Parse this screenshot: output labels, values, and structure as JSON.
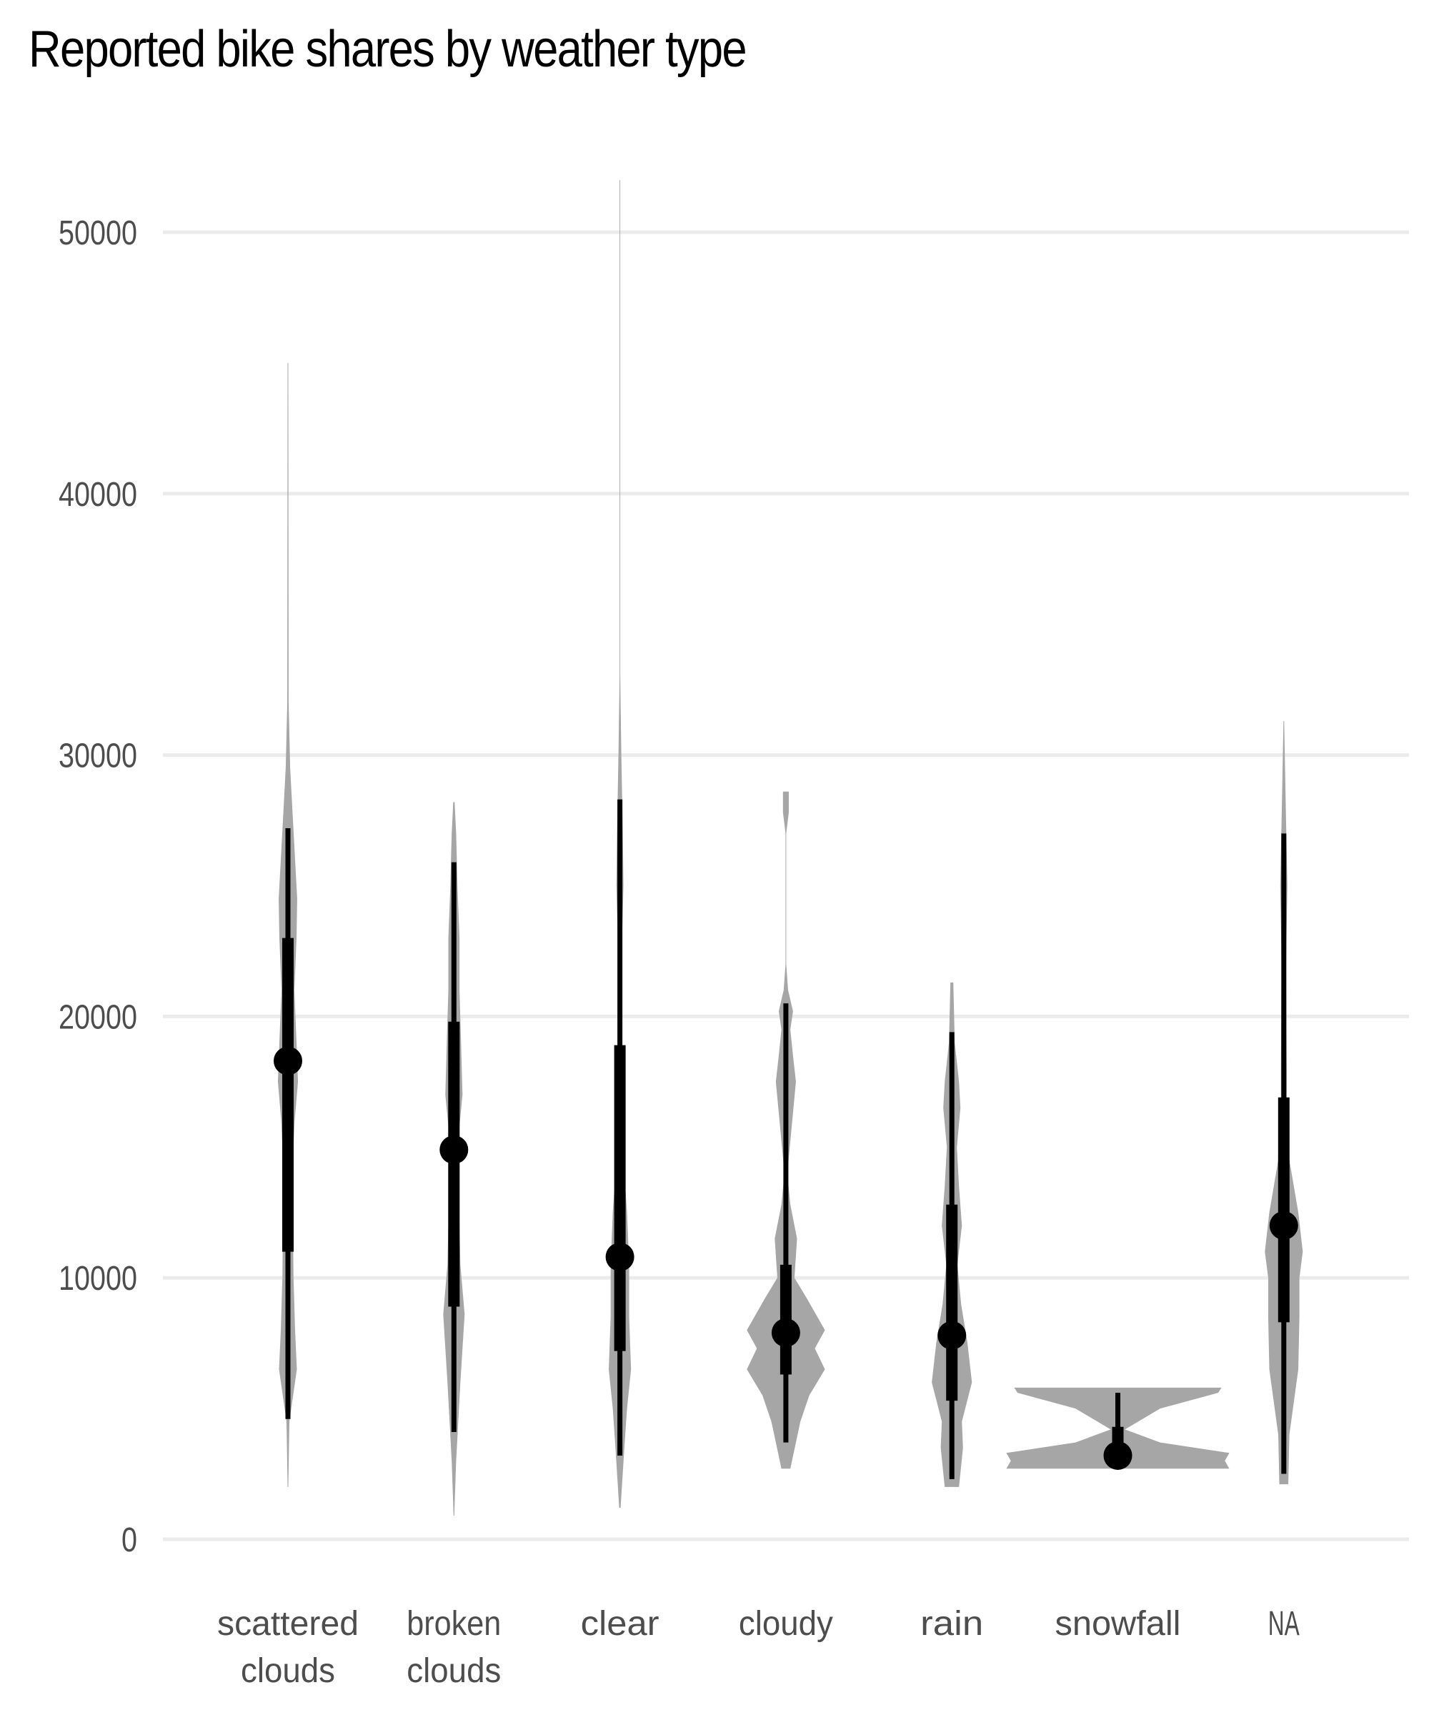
{
  "chart_data": {
    "type": "violin",
    "title": "Reported bike shares by weather type",
    "xlabel": "",
    "ylabel": "",
    "ylim": [
      0,
      52000
    ],
    "yticks": [
      0,
      10000,
      20000,
      30000,
      40000,
      50000
    ],
    "grid": "horizontal",
    "colors": {
      "violin": "#a6a6a6",
      "interval": "#000000",
      "grid": "#ebebeb",
      "tick": "#4d4d4d"
    },
    "categories": [
      {
        "label": [
          "scattered",
          "clouds"
        ],
        "median": 18300,
        "q": [
          11000,
          23000
        ],
        "whisker": [
          4600,
          27200
        ],
        "density": [
          [
            2000,
            0.003
          ],
          [
            4500,
            0.013
          ],
          [
            6500,
            0.08
          ],
          [
            8000,
            0.064
          ],
          [
            10000,
            0.05
          ],
          [
            12000,
            0.045
          ],
          [
            14000,
            0.04
          ],
          [
            16000,
            0.06
          ],
          [
            17500,
            0.09
          ],
          [
            19000,
            0.077
          ],
          [
            21000,
            0.058
          ],
          [
            23000,
            0.077
          ],
          [
            24500,
            0.083
          ],
          [
            26000,
            0.064
          ],
          [
            27500,
            0.045
          ],
          [
            29500,
            0.02
          ],
          [
            32000,
            0.006
          ],
          [
            45000,
            0.003
          ]
        ]
      },
      {
        "label": [
          "broken",
          "clouds"
        ],
        "median": 14900,
        "q": [
          8900,
          19800
        ],
        "whisker": [
          4100,
          25900
        ],
        "density": [
          [
            900,
            0.003
          ],
          [
            3000,
            0.02
          ],
          [
            6000,
            0.058
          ],
          [
            8600,
            0.096
          ],
          [
            10500,
            0.058
          ],
          [
            13000,
            0.045
          ],
          [
            15000,
            0.032
          ],
          [
            17000,
            0.077
          ],
          [
            19000,
            0.064
          ],
          [
            21000,
            0.05
          ],
          [
            23000,
            0.05
          ],
          [
            25000,
            0.032
          ],
          [
            27000,
            0.02
          ],
          [
            28200,
            0.006
          ]
        ]
      },
      {
        "label": [
          "clear"
        ],
        "median": 10800,
        "q": [
          7200,
          18900
        ],
        "whisker": [
          3200,
          28300
        ],
        "density": [
          [
            1200,
            0.006
          ],
          [
            3500,
            0.04
          ],
          [
            5000,
            0.064
          ],
          [
            6500,
            0.1
          ],
          [
            8500,
            0.083
          ],
          [
            10500,
            0.083
          ],
          [
            12500,
            0.064
          ],
          [
            14000,
            0.04
          ],
          [
            16000,
            0.02
          ],
          [
            18000,
            0.013
          ],
          [
            22000,
            0.013
          ],
          [
            25000,
            0.032
          ],
          [
            27000,
            0.026
          ],
          [
            30000,
            0.013
          ],
          [
            33000,
            0.003
          ],
          [
            52000,
            0.003
          ]
        ]
      },
      {
        "label": [
          "cloudy"
        ],
        "median": 7900,
        "q": [
          6300,
          10500
        ],
        "whisker": [
          3700,
          20500
        ],
        "density": [
          [
            2700,
            0.04
          ],
          [
            3700,
            0.09
          ],
          [
            4500,
            0.13
          ],
          [
            5500,
            0.21
          ],
          [
            6500,
            0.35
          ],
          [
            7300,
            0.26
          ],
          [
            8000,
            0.35
          ],
          [
            9200,
            0.19
          ],
          [
            10000,
            0.077
          ],
          [
            11500,
            0.1
          ],
          [
            12800,
            0.04
          ],
          [
            14000,
            0.013
          ],
          [
            17500,
            0.09
          ],
          [
            18500,
            0.064
          ],
          [
            19500,
            0.04
          ],
          [
            20200,
            0.064
          ],
          [
            21000,
            0.02
          ],
          [
            22000,
            0.003
          ],
          [
            27000,
            0.003
          ],
          [
            27800,
            0.026
          ],
          [
            28600,
            0.026
          ]
        ]
      },
      {
        "label": [
          "rain"
        ],
        "median": 7800,
        "q": [
          5300,
          12800
        ],
        "whisker": [
          2300,
          19400
        ],
        "density": [
          [
            2000,
            0.064
          ],
          [
            3500,
            0.1
          ],
          [
            4500,
            0.09
          ],
          [
            6000,
            0.18
          ],
          [
            7500,
            0.14
          ],
          [
            9000,
            0.083
          ],
          [
            10500,
            0.05
          ],
          [
            12000,
            0.09
          ],
          [
            13500,
            0.064
          ],
          [
            15000,
            0.045
          ],
          [
            16500,
            0.077
          ],
          [
            17500,
            0.064
          ],
          [
            19000,
            0.026
          ],
          [
            21300,
            0.013
          ]
        ]
      },
      {
        "label": [
          "snowfall"
        ],
        "median": 3200,
        "q": [
          2900,
          4300
        ],
        "whisker": [
          2800,
          5600
        ],
        "density": [
          [
            2700,
            1.0
          ],
          [
            3000,
            0.96
          ],
          [
            3300,
            1.0
          ],
          [
            3700,
            0.38
          ],
          [
            4200,
            0.064
          ],
          [
            5000,
            0.38
          ],
          [
            5600,
            0.9
          ],
          [
            5800,
            0.93
          ]
        ]
      },
      {
        "label": [
          "NA"
        ],
        "median": 12000,
        "q": [
          8300,
          16900
        ],
        "whisker": [
          2500,
          27000
        ],
        "density": [
          [
            2100,
            0.04
          ],
          [
            4000,
            0.05
          ],
          [
            6500,
            0.13
          ],
          [
            8500,
            0.14
          ],
          [
            10000,
            0.14
          ],
          [
            11000,
            0.17
          ],
          [
            12500,
            0.13
          ],
          [
            14500,
            0.05
          ],
          [
            16000,
            0.026
          ],
          [
            18000,
            0.026
          ],
          [
            22000,
            0.02
          ],
          [
            25000,
            0.032
          ],
          [
            27500,
            0.02
          ],
          [
            31300,
            0.003
          ]
        ]
      }
    ]
  }
}
